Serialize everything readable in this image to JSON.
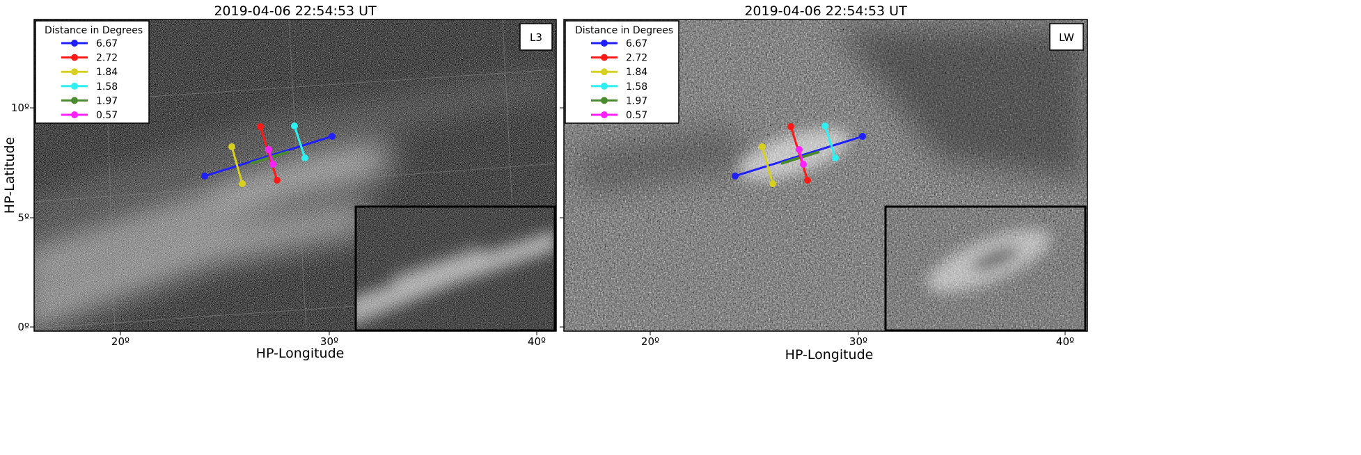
{
  "panels": [
    {
      "title": "2019-04-06 22:54:53 UT",
      "panel_label": "L3",
      "xlabel": "HP-Longitude",
      "ylabel": "HP-Latitude",
      "xticks": [
        "20º",
        "30º",
        "40º"
      ],
      "yticks": [
        "0º",
        "5º",
        "10º"
      ],
      "image_style": "dark-noise-streaks"
    },
    {
      "title": "2019-04-06 22:54:53 UT",
      "panel_label": "LW",
      "xlabel": "HP-Longitude",
      "ylabel": "",
      "xticks": [
        "20º",
        "30º",
        "40º"
      ],
      "yticks": [],
      "image_style": "grey-speckle"
    }
  ],
  "legend": {
    "title": "Distance in Degrees",
    "entries": [
      {
        "label": "6.67",
        "color": "#1f1fff"
      },
      {
        "label": "2.72",
        "color": "#ff1a1a"
      },
      {
        "label": "1.84",
        "color": "#d8d020"
      },
      {
        "label": "1.58",
        "color": "#2ef0f0"
      },
      {
        "label": "1.97",
        "color": "#4a8a2e"
      },
      {
        "label": "0.57",
        "color": "#ff22ff"
      }
    ]
  },
  "measure_lines": [
    {
      "label": "6.67",
      "color": "#1f1fff"
    },
    {
      "label": "2.72",
      "color": "#ff1a1a"
    },
    {
      "label": "1.84",
      "color": "#d8d020"
    },
    {
      "label": "1.58",
      "color": "#2ef0f0"
    },
    {
      "label": "1.97",
      "color": "#4a8a2e"
    },
    {
      "label": "0.57",
      "color": "#ff22ff"
    }
  ]
}
